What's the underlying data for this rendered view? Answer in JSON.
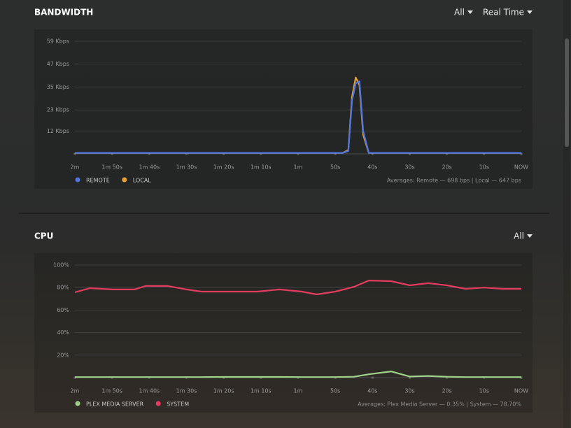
{
  "chart_data": [
    {
      "type": "line",
      "title": "BANDWIDTH",
      "controls": [
        "All",
        "Real Time"
      ],
      "x": [
        -120,
        -100,
        -80,
        -60,
        -48,
        -46.5,
        -45.5,
        -44.5,
        -43.5,
        -42.5,
        -41,
        -30,
        -15,
        0
      ],
      "xlim": [
        -120,
        0
      ],
      "xticks": [
        {
          "value": -120,
          "label": "2m"
        },
        {
          "value": -110,
          "label": "1m 50s"
        },
        {
          "value": -100,
          "label": "1m 40s"
        },
        {
          "value": -90,
          "label": "1m 30s"
        },
        {
          "value": -80,
          "label": "1m 20s"
        },
        {
          "value": -70,
          "label": "1m 10s"
        },
        {
          "value": -60,
          "label": "1m"
        },
        {
          "value": -50,
          "label": "50s"
        },
        {
          "value": -40,
          "label": "40s"
        },
        {
          "value": -30,
          "label": "30s"
        },
        {
          "value": -20,
          "label": "20s"
        },
        {
          "value": -10,
          "label": "10s"
        },
        {
          "value": 0,
          "label": "NOW"
        }
      ],
      "ylim": [
        0,
        59
      ],
      "yticks": [
        {
          "value": 12,
          "label": "12 Kbps"
        },
        {
          "value": 23,
          "label": "23 Kbps"
        },
        {
          "value": 35,
          "label": "35 Kbps"
        },
        {
          "value": 47,
          "label": "47 Kbps"
        },
        {
          "value": 59,
          "label": "59 Kbps"
        }
      ],
      "grid": true,
      "series": [
        {
          "name": "LOCAL",
          "color": "#e5a135",
          "values": [
            0.5,
            0.5,
            0.5,
            0.5,
            0.5,
            2,
            30,
            40,
            36,
            10,
            0.5,
            0.5,
            0.5,
            0.5
          ]
        },
        {
          "name": "REMOTE",
          "color": "#4f76e0",
          "values": [
            0.5,
            0.5,
            0.5,
            0.5,
            0.5,
            1.5,
            28,
            37,
            38,
            12,
            0.5,
            0.5,
            0.5,
            0.5
          ]
        }
      ],
      "legend_order": [
        "REMOTE",
        "LOCAL"
      ],
      "annotation": "Averages: Remote — 698 bps | Local — 647 bps"
    },
    {
      "type": "line",
      "title": "CPU",
      "controls": [
        "All"
      ],
      "x": [
        -120,
        -116,
        -110,
        -104,
        -101,
        -95,
        -90,
        -86,
        -80,
        -71,
        -65,
        -59,
        -55,
        -50,
        -45,
        -41,
        -35,
        -30,
        -25,
        -20,
        -15,
        -10,
        -5,
        0
      ],
      "xlim": [
        -120,
        0
      ],
      "xticks": [
        {
          "value": -120,
          "label": "2m"
        },
        {
          "value": -110,
          "label": "1m 50s"
        },
        {
          "value": -100,
          "label": "1m 40s"
        },
        {
          "value": -90,
          "label": "1m 30s"
        },
        {
          "value": -80,
          "label": "1m 20s"
        },
        {
          "value": -70,
          "label": "1m 10s"
        },
        {
          "value": -60,
          "label": "1m"
        },
        {
          "value": -50,
          "label": "50s"
        },
        {
          "value": -40,
          "label": "40s"
        },
        {
          "value": -30,
          "label": "30s"
        },
        {
          "value": -20,
          "label": "20s"
        },
        {
          "value": -10,
          "label": "10s"
        },
        {
          "value": 0,
          "label": "NOW"
        }
      ],
      "ylim": [
        0,
        100
      ],
      "yticks": [
        {
          "value": 20,
          "label": "20%"
        },
        {
          "value": 40,
          "label": "40%"
        },
        {
          "value": 60,
          "label": "60%"
        },
        {
          "value": 80,
          "label": "80%"
        },
        {
          "value": 100,
          "label": "100%"
        }
      ],
      "grid": true,
      "series": [
        {
          "name": "PLEX MEDIA SERVER",
          "color": "#9fd38a",
          "values": [
            0.5,
            0.5,
            0.5,
            0.5,
            0.5,
            0.5,
            0.5,
            0.5,
            0.6,
            0.6,
            0.6,
            0.5,
            0.5,
            0.5,
            0.8,
            3,
            5.5,
            1,
            1.5,
            0.8,
            0.5,
            0.5,
            0.5,
            0.5
          ]
        },
        {
          "name": "SYSTEM",
          "color": "#e33c5f",
          "values": [
            75.8,
            79.5,
            78.3,
            78.3,
            81.4,
            81.4,
            78.3,
            76.4,
            76.4,
            76.4,
            78.3,
            76.4,
            73.9,
            76.4,
            80.7,
            86.3,
            85.7,
            82,
            83.9,
            82,
            78.9,
            80,
            78.9,
            78.9
          ]
        }
      ],
      "legend_order": [
        "PLEX MEDIA SERVER",
        "SYSTEM"
      ],
      "annotation": "Averages: Plex Media Server — 0.35% | System — 78.70%"
    }
  ]
}
